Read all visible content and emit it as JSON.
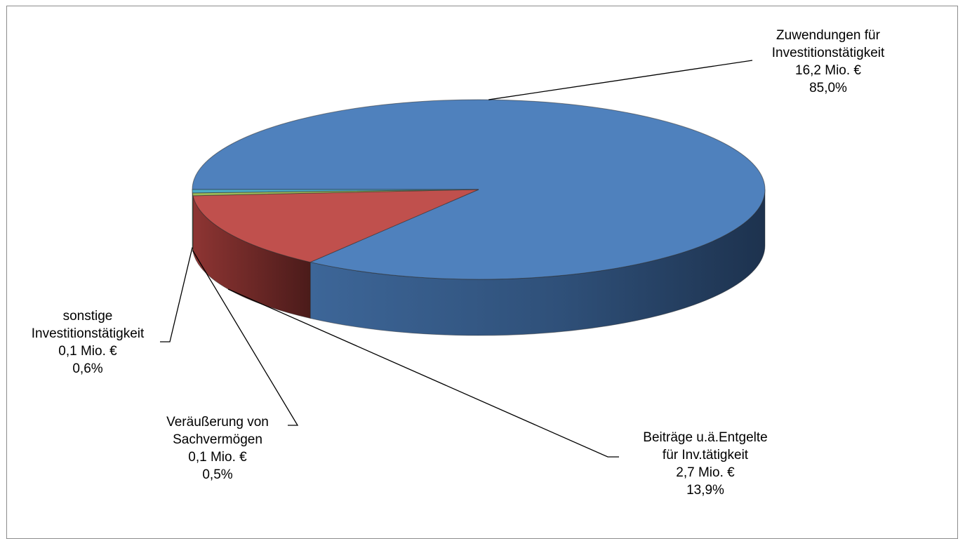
{
  "chart_data": {
    "type": "pie",
    "title": "",
    "slices": [
      {
        "name_lines": [
          "Zuwendungen für",
          "Investitionstätigkeit"
        ],
        "value_text": "16,2 Mio. €",
        "percent_text": "85,0%",
        "value": 16.2,
        "percent": 85.0,
        "color": "#4f81bd"
      },
      {
        "name_lines": [
          "Beiträge u.ä.Entgelte",
          "für Inv.tätigkeit"
        ],
        "value_text": "2,7 Mio. €",
        "percent_text": "13,9%",
        "value": 2.7,
        "percent": 13.9,
        "color": "#c0504d"
      },
      {
        "name_lines": [
          "Veräußerung von",
          "Sachvermögen"
        ],
        "value_text": "0,1 Mio. €",
        "percent_text": "0,5%",
        "value": 0.1,
        "percent": 0.5,
        "color": "#9bbb59"
      },
      {
        "name_lines": [
          "sonstige",
          "Investitionstätigkeit"
        ],
        "value_text": "0,1 Mio. €",
        "percent_text": "0,6%",
        "value": 0.1,
        "percent": 0.6,
        "color": "#4bacc6"
      }
    ]
  }
}
